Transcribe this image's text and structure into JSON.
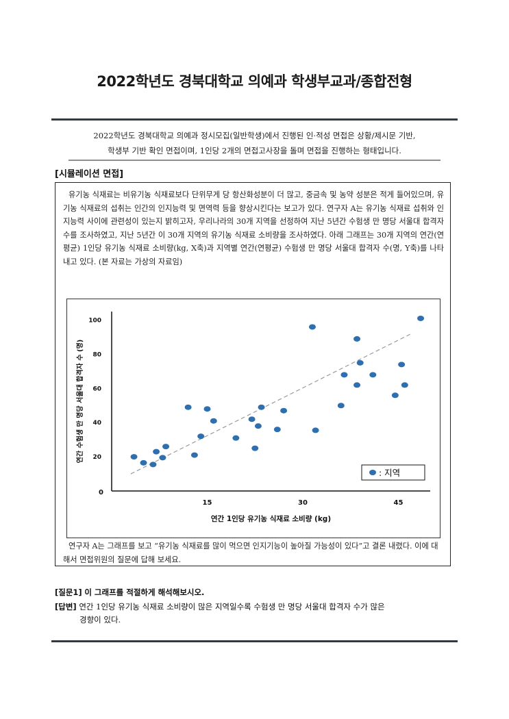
{
  "doc": {
    "title": "2022학년도 경북대학교 의예과 학생부교과/종합전형",
    "intro_line1": "2022학년도 경북대학교 의예과 정시모집(일반학생)에서 진행된 인·적성 면접은 상황/제시문 기반,",
    "intro_line2": "학생부 기반 확인 면접이며, 1인당 2개의 면접고사장을 돌며 면접을 진행하는 형태입니다.",
    "section_heading": "[시뮬레이션 면접]",
    "passage": "유기농 식재료는 비유기농 식재료보다 단위무게 당 항산화성분이 더 많고, 중금속 및 농약 성분은 적게 들어있으며, 유기농 식재료의 섭취는 인간의 인지능력 및 면역력 등을 향상시킨다는 보고가 있다. 연구자 A는 유기농 식재료 섭취와 인지능력 사이에 관련성이 있는지 밝히고자, 우리나라의 30개 지역을 선정하여 지난 5년간 수험생 만 명당 서울대 합격자 수를 조사하였고, 지난 5년간 이 30개 지역의 유기농 식재료 소비량을 조사하였다. 아래 그래프는 30개 지역의 연간(연평균) 1인당 유기농 식재료 소비량(kg, X축)과 지역별 연간(연평균) 수험생 만 명당 서울대 합격자 수(명, Y축)를 나타내고 있다. (본 자료는 가상의 자료임)",
    "after_chart": "연구자 A는 그래프를 보고 “유기농 식재료를 많이 먹으면 인지기능이 높아질 가능성이 있다”고 결론 내렸다. 이에 대해서 면접위원의 질문에 답해 보세요.",
    "question_label": "[질문1]",
    "question_text": "이 그래프를 적절하게 해석해보시오.",
    "answer_label": "[답변]",
    "answer_line1": "연간 1인당 유기농 식재료 소비량이 많은 지역일수록 수험생 만 명당 서울대 합격자 수가 많은",
    "answer_line2": "경향이 있다."
  },
  "chart_data": {
    "type": "scatter",
    "xlabel": "연간 1인당 유기농 식재료 소비량 (kg)",
    "ylabel": "연간 수험생 만 명당 서울대 합격자 수 (명)",
    "x_ticks": [
      "0",
      "15",
      "30",
      "45"
    ],
    "y_ticks": [
      "20",
      "40",
      "60",
      "80",
      "100"
    ],
    "xlim": [
      0,
      50
    ],
    "ylim": [
      0,
      105
    ],
    "legend_label": ": 지역",
    "legend_position": "bottom-right",
    "point_color": "#2e6fb0",
    "trend_color": "#9a9a9a",
    "trendline": [
      [
        3,
        10
      ],
      [
        47,
        92
      ]
    ],
    "points": [
      [
        3.5,
        20
      ],
      [
        5,
        16.5
      ],
      [
        6.5,
        15.5
      ],
      [
        7,
        23
      ],
      [
        8,
        19.5
      ],
      [
        8.5,
        26
      ],
      [
        12,
        49
      ],
      [
        13,
        21
      ],
      [
        14,
        32
      ],
      [
        15,
        48
      ],
      [
        16,
        41
      ],
      [
        19.5,
        31
      ],
      [
        22,
        42
      ],
      [
        22.5,
        25
      ],
      [
        23,
        38
      ],
      [
        23.5,
        49
      ],
      [
        26,
        36
      ],
      [
        27,
        47
      ],
      [
        31.5,
        96
      ],
      [
        32,
        35.5
      ],
      [
        36,
        50
      ],
      [
        36.5,
        68
      ],
      [
        38.5,
        89
      ],
      [
        38.5,
        62
      ],
      [
        39,
        75
      ],
      [
        41,
        68
      ],
      [
        44.5,
        56
      ],
      [
        45.5,
        74
      ],
      [
        46,
        62
      ],
      [
        48.5,
        101
      ]
    ]
  }
}
